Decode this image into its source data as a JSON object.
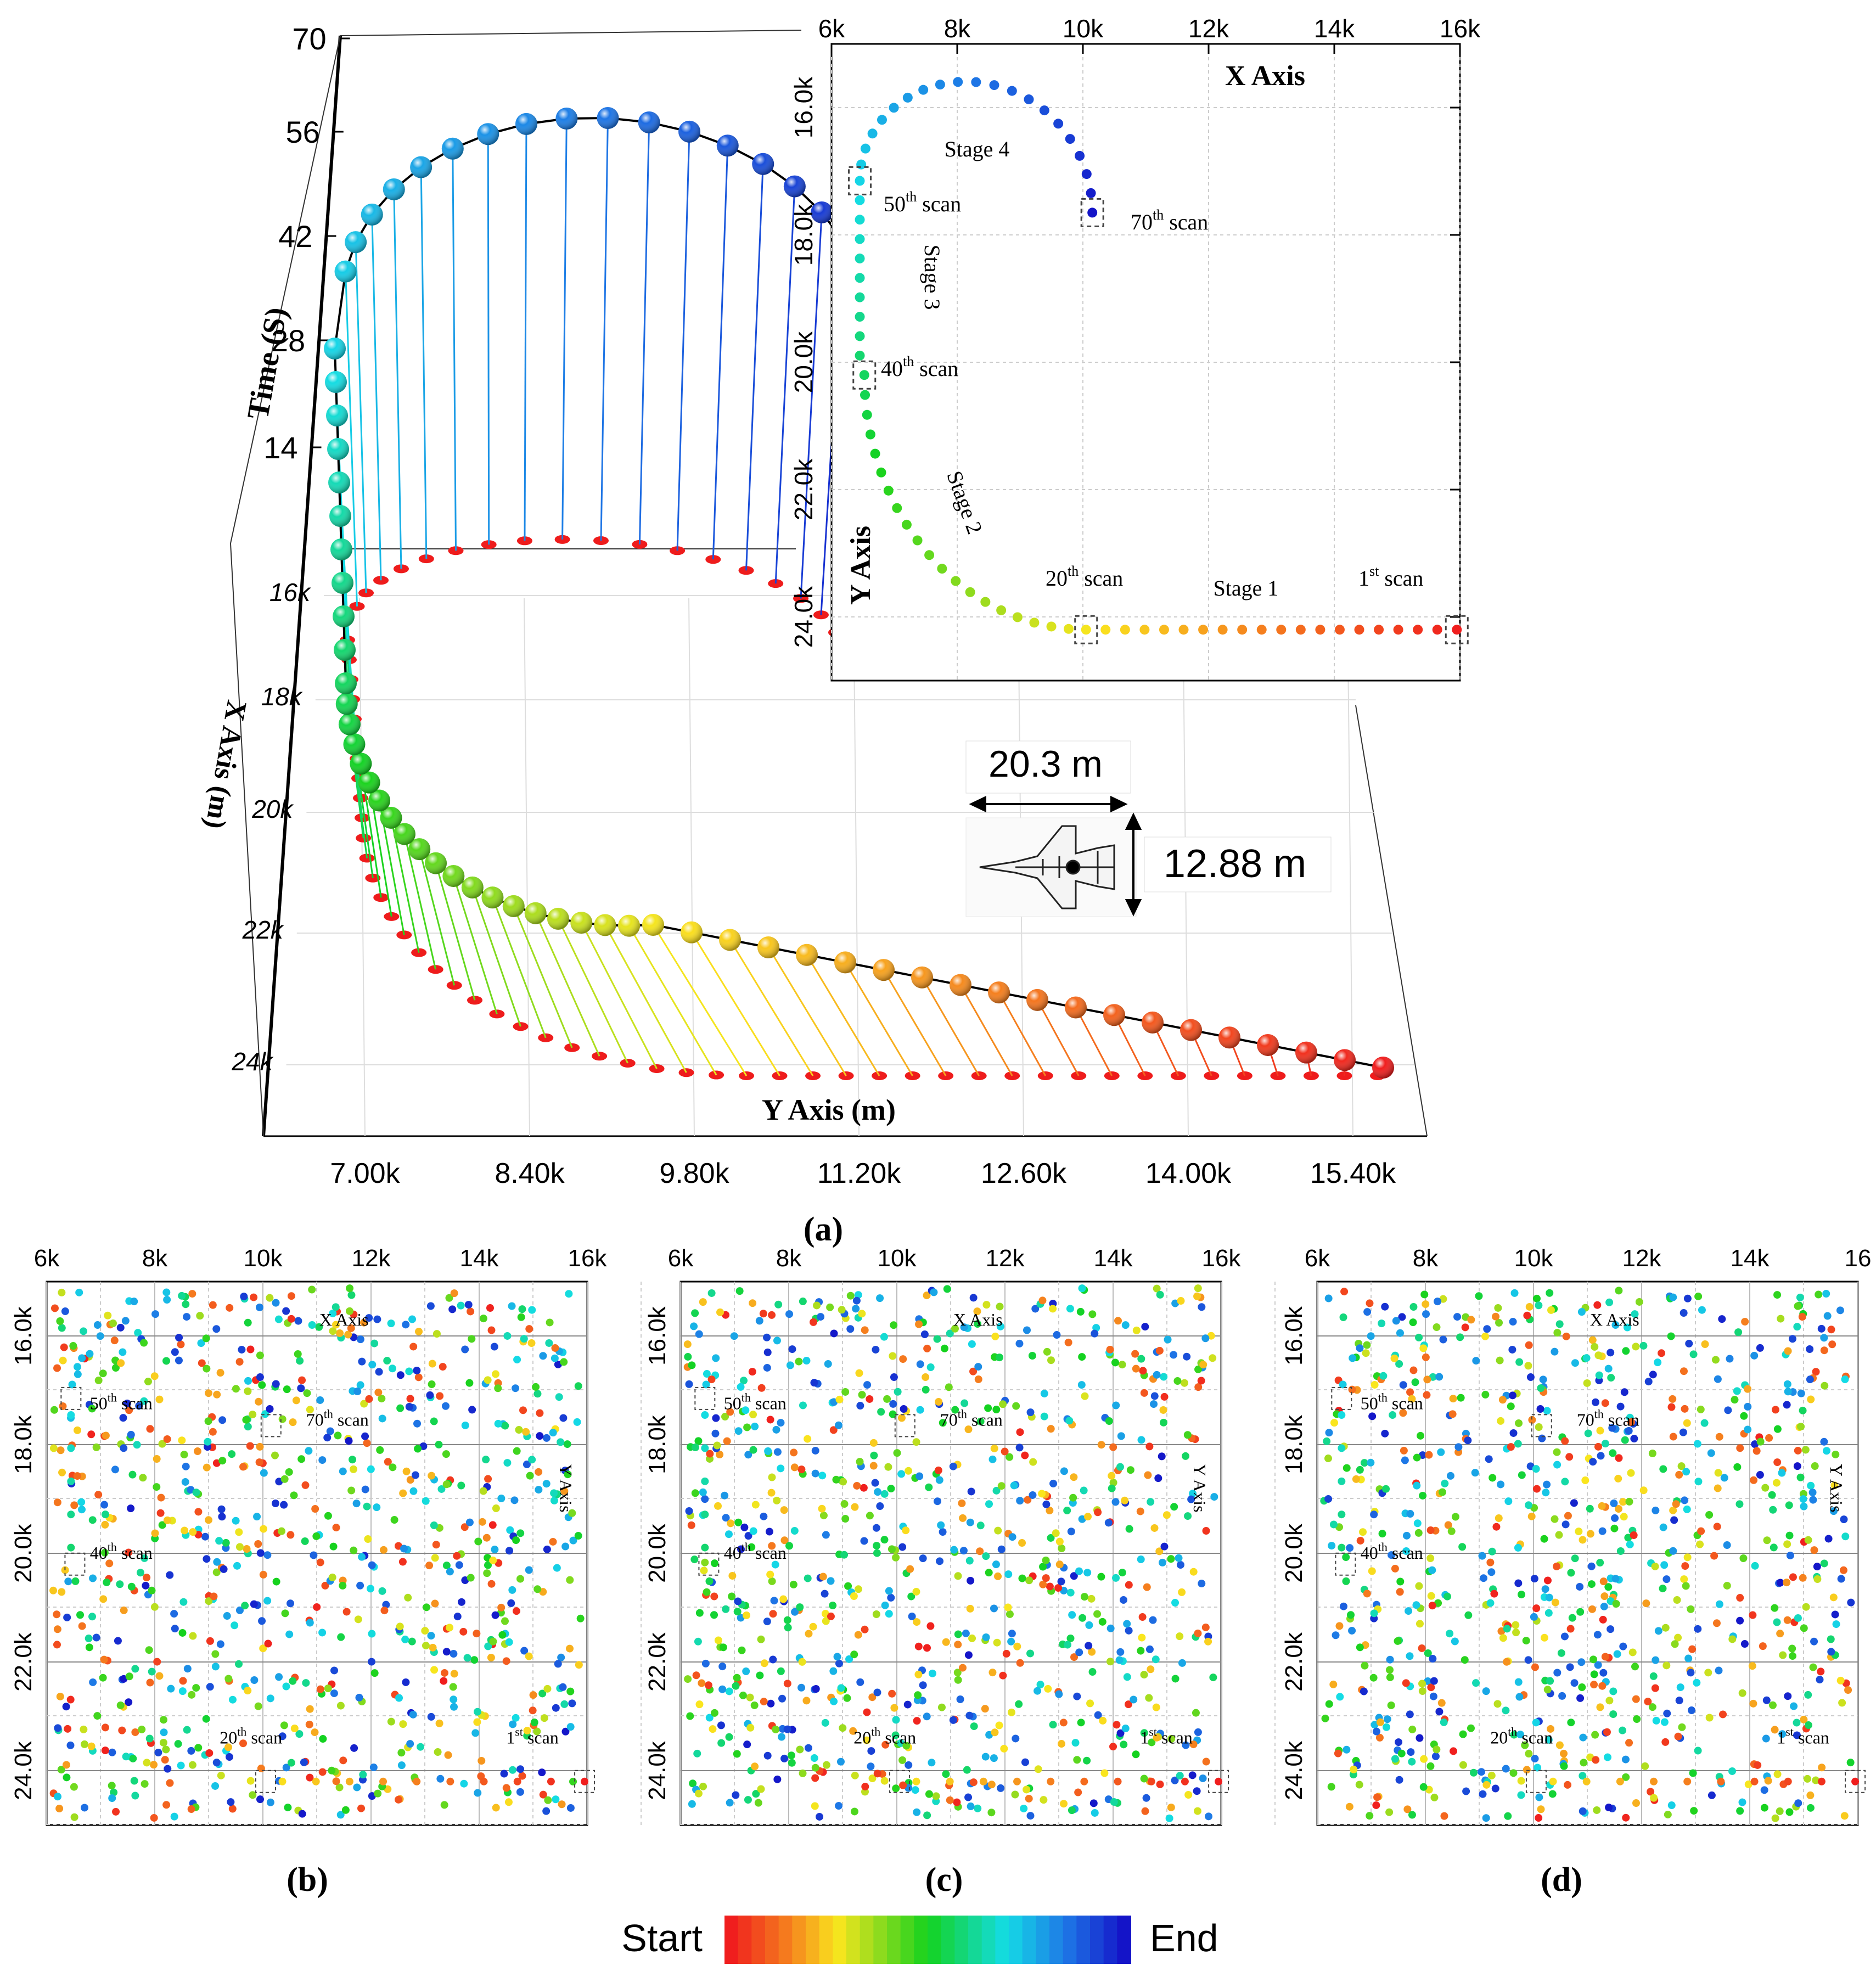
{
  "figure_labels": {
    "a": "(a)",
    "b": "(b)",
    "c": "(c)",
    "d": "(d)"
  },
  "colorbar": {
    "start_label": "Start",
    "end_label": "End"
  },
  "chart_data": [
    {
      "id": "a-3d",
      "type": "scatter",
      "title": "",
      "xlabel": "Y Axis (m)",
      "ylabel": "X Axis (m)",
      "zlabel": "Time (S)",
      "x_ticks": [
        "7.00k",
        "8.40k",
        "9.80k",
        "11.20k",
        "12.60k",
        "14.00k",
        "15.40k"
      ],
      "y_ticks": [
        "16k",
        "18k",
        "20k",
        "22k",
        "24k"
      ],
      "z_ticks": [
        "70",
        "56",
        "42",
        "28",
        "14"
      ],
      "z_range": [
        0,
        70
      ],
      "points": 70,
      "description_series": "trajectory spheres coloured from start (red) to end (blue), with vertical drop lines to red ground projection"
    },
    {
      "id": "a-inset",
      "type": "scatter",
      "xlabel": "X Axis",
      "ylabel": "Y Axis",
      "x_ticks": [
        "6k",
        "8k",
        "10k",
        "12k",
        "14k",
        "16k"
      ],
      "y_ticks": [
        "16.0k",
        "18.0k",
        "20.0k",
        "22.0k",
        "24.0k"
      ],
      "xlim": [
        6000,
        16000
      ],
      "ylim": [
        15000,
        25000
      ],
      "annotations": {
        "stage1": "Stage 1",
        "stage2": "Stage 2",
        "stage3": "Stage 3",
        "stage4": "Stage 4",
        "scan1_num": "1",
        "scan1_sup": "st",
        "scan20_num": "20",
        "scan20_sup": "th",
        "scan40_num": "40",
        "scan40_sup": "th",
        "scan50_num": "50",
        "scan50_sup": "th",
        "scan70_num": "70",
        "scan70_sup": "th",
        "scan_word": " scan"
      },
      "aircraft": {
        "length": "20.3 m",
        "width": "12.88 m"
      }
    },
    {
      "id": "b",
      "type": "scatter",
      "x_ticks": [
        "6k",
        "8k",
        "10k",
        "12k",
        "14k",
        "16k"
      ],
      "y_ticks": [
        "16.0k",
        "18.0k",
        "20.0k",
        "22.0k",
        "24.0k"
      ],
      "xlabel": "X Axis",
      "ylabel": "Y Axis"
    },
    {
      "id": "c",
      "type": "scatter",
      "x_ticks": [
        "6k",
        "8k",
        "10k",
        "12k",
        "14k",
        "16k"
      ],
      "y_ticks": [
        "16.0k",
        "18.0k",
        "20.0k",
        "22.0k",
        "24.0k"
      ],
      "xlabel": "X Axis",
      "ylabel": "Y Axis"
    },
    {
      "id": "d",
      "type": "scatter",
      "x_ticks": [
        "6k",
        "8k",
        "10k",
        "12k",
        "14k",
        "16"
      ],
      "y_ticks": [
        "16.0k",
        "18.0k",
        "20.0k",
        "22.0k",
        "24.0k"
      ],
      "xlabel": "X Axis",
      "ylabel": "Y Axis"
    }
  ]
}
